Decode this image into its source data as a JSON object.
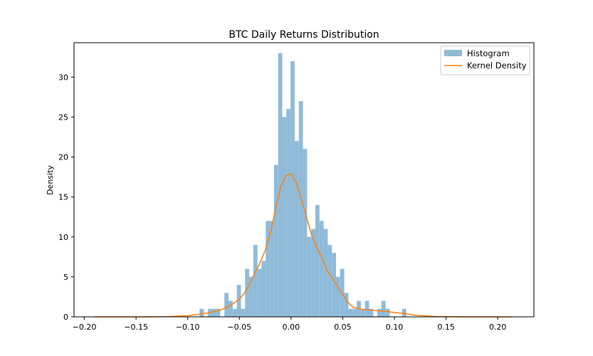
{
  "chart_data": {
    "type": "bar",
    "title": "BTC Daily Returns Distribution",
    "xlabel": "",
    "ylabel": "Density",
    "xlim": [
      -0.21,
      0.235
    ],
    "ylim": [
      0,
      34.3
    ],
    "xticks": [
      -0.2,
      -0.15,
      -0.1,
      -0.05,
      0.0,
      0.05,
      0.1,
      0.15,
      0.2
    ],
    "xtick_labels": [
      "−0.20",
      "−0.15",
      "−0.10",
      "−0.05",
      "0.00",
      "0.05",
      "0.10",
      "0.15",
      "0.20"
    ],
    "yticks": [
      0,
      5,
      10,
      15,
      20,
      25,
      30
    ],
    "ytick_labels": [
      "0",
      "5",
      "10",
      "15",
      "20",
      "25",
      "30"
    ],
    "grid": false,
    "legend_position": "top-right",
    "colors": {
      "histogram": "#8fbbd9",
      "kde": "#ff7f0e"
    },
    "series": [
      {
        "name": "Histogram",
        "kind": "histogram",
        "bin_width": 0.004,
        "bins": [
          [
            -0.0865,
            1
          ],
          [
            -0.0785,
            1
          ],
          [
            -0.0745,
            1
          ],
          [
            -0.0705,
            1
          ],
          [
            -0.0625,
            3
          ],
          [
            -0.0585,
            2
          ],
          [
            -0.0545,
            1
          ],
          [
            -0.0505,
            4
          ],
          [
            -0.0465,
            1
          ],
          [
            -0.0425,
            6
          ],
          [
            -0.0385,
            5
          ],
          [
            -0.0345,
            9
          ],
          [
            -0.0305,
            6
          ],
          [
            -0.0265,
            7
          ],
          [
            -0.0225,
            12
          ],
          [
            -0.0185,
            12
          ],
          [
            -0.0145,
            19
          ],
          [
            -0.0105,
            33
          ],
          [
            -0.0065,
            25
          ],
          [
            -0.0025,
            26
          ],
          [
            0.0015,
            32
          ],
          [
            0.0055,
            22
          ],
          [
            0.0095,
            27
          ],
          [
            0.0135,
            21
          ],
          [
            0.0175,
            10
          ],
          [
            0.0215,
            11
          ],
          [
            0.0255,
            14
          ],
          [
            0.0295,
            12
          ],
          [
            0.0335,
            11
          ],
          [
            0.0375,
            9
          ],
          [
            0.0415,
            8
          ],
          [
            0.0455,
            5
          ],
          [
            0.0495,
            6
          ],
          [
            0.0535,
            3
          ],
          [
            0.0575,
            1
          ],
          [
            0.0615,
            1
          ],
          [
            0.0655,
            2
          ],
          [
            0.0695,
            1
          ],
          [
            0.0735,
            2
          ],
          [
            0.0775,
            1
          ],
          [
            0.0855,
            1
          ],
          [
            0.0895,
            2
          ],
          [
            0.0935,
            1
          ],
          [
            0.1095,
            1
          ]
        ]
      },
      {
        "name": "Kernel Density",
        "kind": "line",
        "x": [
          -0.19,
          -0.15,
          -0.12,
          -0.1,
          -0.09,
          -0.08,
          -0.07,
          -0.06,
          -0.05,
          -0.045,
          -0.04,
          -0.035,
          -0.03,
          -0.025,
          -0.02,
          -0.015,
          -0.01,
          -0.005,
          0.0,
          0.005,
          0.01,
          0.015,
          0.02,
          0.025,
          0.03,
          0.035,
          0.04,
          0.045,
          0.05,
          0.055,
          0.06,
          0.07,
          0.08,
          0.09,
          0.1,
          0.11,
          0.12,
          0.14,
          0.17,
          0.213
        ],
        "y": [
          0.0,
          0.0,
          0.02,
          0.15,
          0.3,
          0.5,
          0.8,
          1.3,
          2.2,
          3.0,
          4.1,
          5.5,
          6.8,
          8.3,
          10.5,
          13.5,
          16.3,
          17.7,
          17.9,
          16.8,
          14.7,
          12.4,
          10.2,
          8.7,
          7.3,
          5.8,
          4.8,
          3.8,
          2.8,
          1.8,
          1.2,
          0.9,
          0.8,
          0.7,
          0.55,
          0.4,
          0.2,
          0.05,
          0.0,
          0.0
        ]
      }
    ]
  }
}
